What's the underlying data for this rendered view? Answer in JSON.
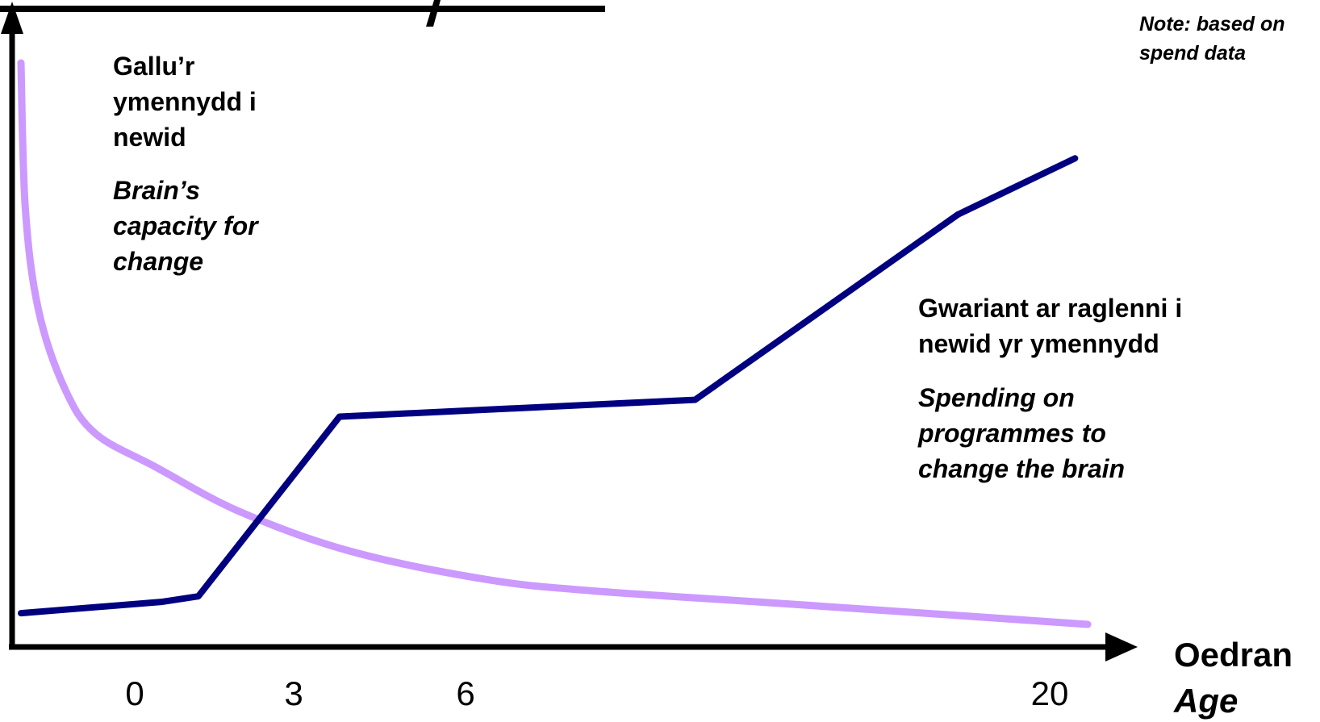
{
  "chart_data": {
    "type": "line",
    "title": "",
    "xlabel": "Oedran",
    "xlabel_en": "Age",
    "ylabel": "",
    "x_ticks": [
      "0",
      "3",
      "6",
      "20"
    ],
    "series": [
      {
        "name": "Gallu'r ymennydd i newid / Brain's capacity for change",
        "color": "#cc99ff",
        "curve": "smooth",
        "points": [
          [
            -2.6,
            100
          ],
          [
            -2.5,
            74
          ],
          [
            -2.2,
            56
          ],
          [
            -1.6,
            42
          ],
          [
            -0.9,
            34
          ],
          [
            0.4,
            28
          ],
          [
            2.0,
            20
          ],
          [
            4.0,
            13
          ],
          [
            6.5,
            8
          ],
          [
            9.0,
            6
          ],
          [
            13.0,
            4
          ],
          [
            17.0,
            2
          ],
          [
            20.3,
            0
          ]
        ]
      },
      {
        "name": "Gwariant ar raglenni i newid yr ymennydd / Spending on programmes to change the brain",
        "color": "#000080",
        "curve": "linear",
        "points": [
          [
            -2.6,
            2
          ],
          [
            0.5,
            4
          ],
          [
            1.2,
            5
          ],
          [
            3.8,
            37
          ],
          [
            11.5,
            40
          ],
          [
            17.8,
            73
          ],
          [
            20.2,
            83
          ]
        ]
      }
    ],
    "grid": false,
    "legend": "none"
  },
  "labels": {
    "brain_cy": "Gallu’r ymennydd i newid",
    "brain_en": "Brain’s capacity for change",
    "spend_cy": "Gwariant ar raglenni i newid yr ymennydd",
    "spend_en": "Spending on programmes to change the brain",
    "note": "Note: based on spend data"
  },
  "colors": {
    "axis": "#000000",
    "brain_line": "#cc99ff",
    "spend_line": "#000080"
  }
}
